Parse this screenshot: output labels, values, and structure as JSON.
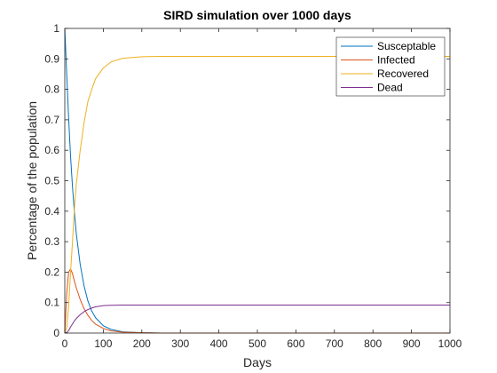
{
  "chart_data": {
    "type": "line",
    "title": "SIRD simulation over 1000 days",
    "xlabel": "Days",
    "ylabel": "Percentage of the population",
    "xlim": [
      0,
      1000
    ],
    "ylim": [
      0,
      1
    ],
    "xticks": [
      "0",
      "100",
      "200",
      "300",
      "400",
      "500",
      "600",
      "700",
      "800",
      "900",
      "1000"
    ],
    "yticks": [
      "0",
      "0.1",
      "0.2",
      "0.3",
      "0.4",
      "0.5",
      "0.6",
      "0.7",
      "0.8",
      "0.9",
      "1"
    ],
    "grid": false,
    "legend_position": "top-right",
    "x": [
      0,
      5,
      10,
      15,
      20,
      25,
      30,
      40,
      50,
      60,
      70,
      80,
      100,
      120,
      150,
      200,
      250,
      300,
      400,
      500,
      600,
      700,
      800,
      900,
      1000
    ],
    "series": [
      {
        "name": "Susceptable",
        "color": "#0072BD",
        "values": [
          1.0,
          0.85,
          0.705,
          0.58,
          0.48,
          0.395,
          0.325,
          0.225,
          0.155,
          0.105,
          0.072,
          0.05,
          0.024,
          0.012,
          0.004,
          0.001,
          0.0,
          0.0,
          0.0,
          0.0,
          0.0,
          0.0,
          0.0,
          0.0,
          0.0
        ]
      },
      {
        "name": "Infected",
        "color": "#D95319",
        "values": [
          0.0,
          0.13,
          0.2,
          0.21,
          0.195,
          0.17,
          0.148,
          0.11,
          0.08,
          0.058,
          0.041,
          0.029,
          0.015,
          0.007,
          0.003,
          0.001,
          0.0,
          0.0,
          0.0,
          0.0,
          0.0,
          0.0,
          0.0,
          0.0,
          0.0
        ]
      },
      {
        "name": "Recovered",
        "color": "#EDB120",
        "values": [
          0.0,
          0.018,
          0.088,
          0.2,
          0.3,
          0.41,
          0.49,
          0.6,
          0.69,
          0.76,
          0.8,
          0.835,
          0.87,
          0.89,
          0.902,
          0.907,
          0.908,
          0.908,
          0.908,
          0.908,
          0.908,
          0.908,
          0.908,
          0.908,
          0.908
        ]
      },
      {
        "name": "Dead",
        "color": "#7E2F8E",
        "values": [
          0.0,
          0.002,
          0.008,
          0.02,
          0.03,
          0.04,
          0.048,
          0.06,
          0.07,
          0.077,
          0.082,
          0.086,
          0.09,
          0.091,
          0.092,
          0.092,
          0.092,
          0.092,
          0.092,
          0.092,
          0.092,
          0.092,
          0.092,
          0.092,
          0.092
        ]
      }
    ]
  }
}
